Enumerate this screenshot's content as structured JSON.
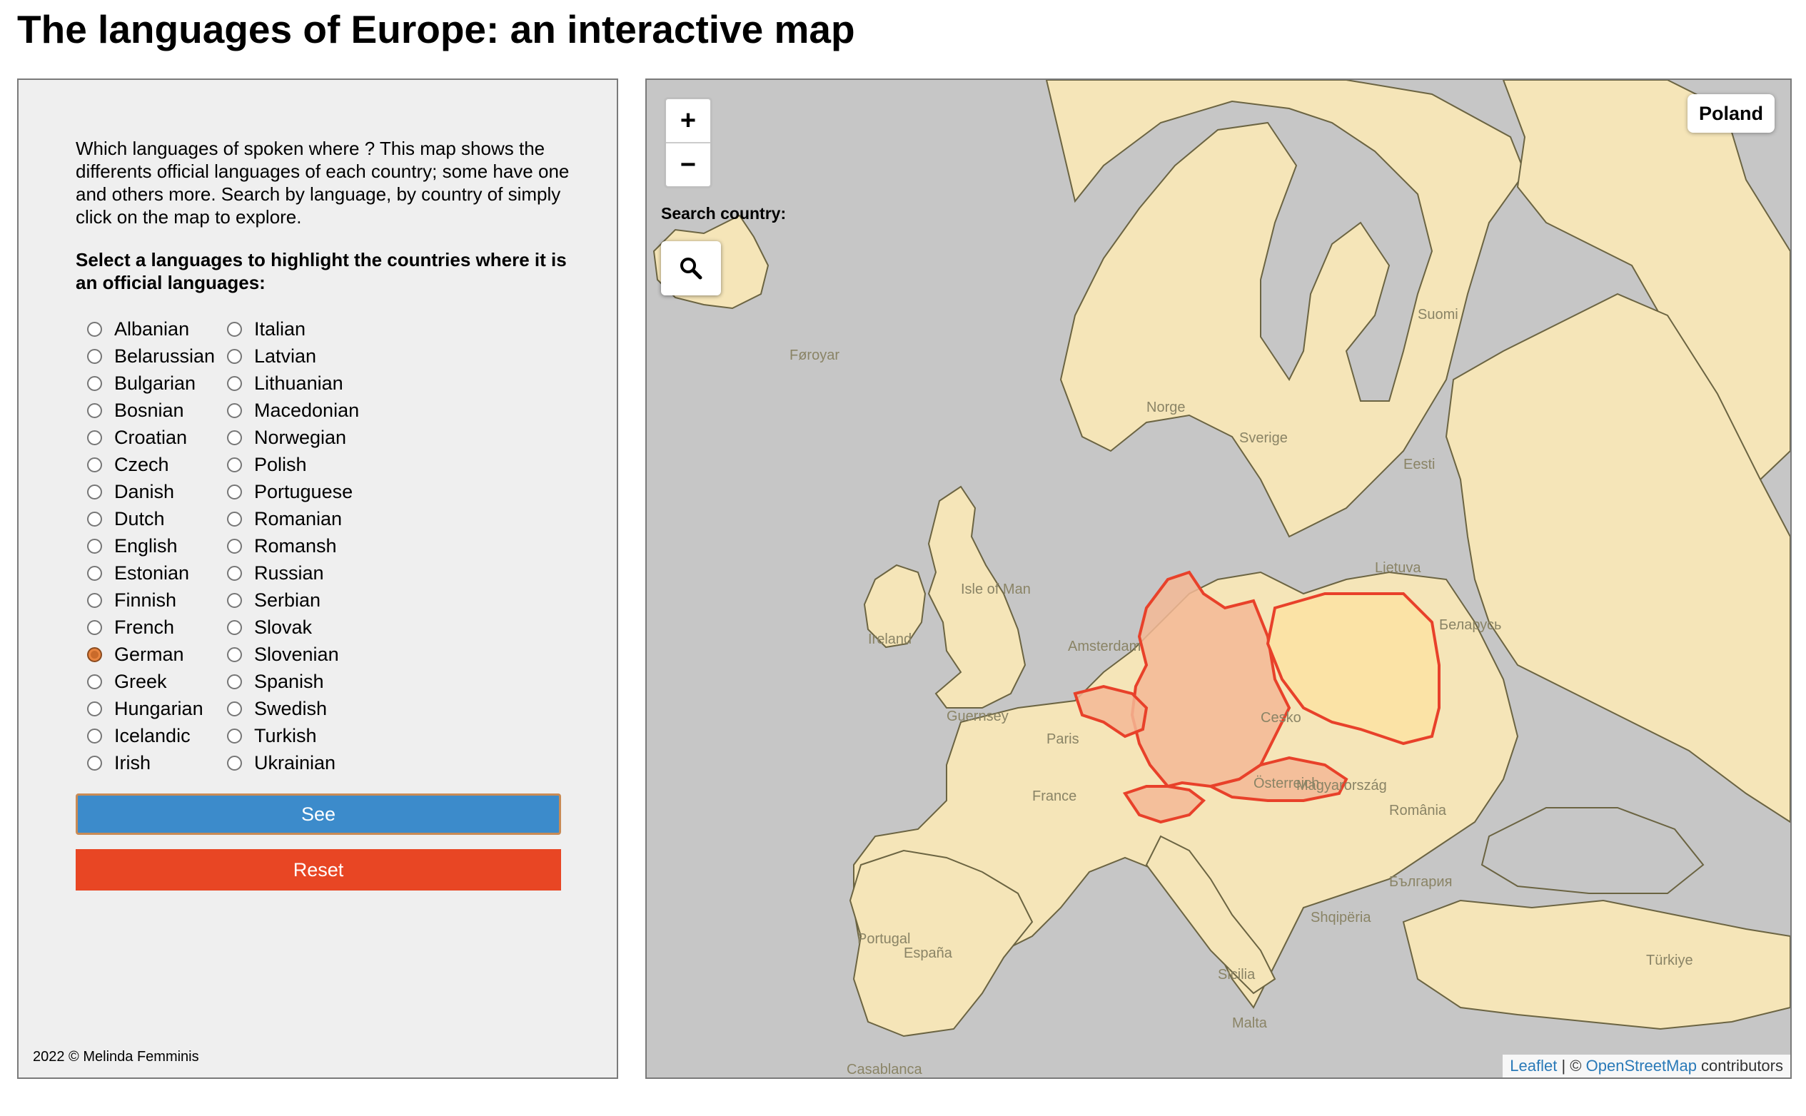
{
  "page_title": "The languages of Europe: an interactive map",
  "panel": {
    "intro": "Which languages of spoken where ? This map shows the differents official languages of each country; some have one and others more. Search by language, by country of simply click on the map to explore.",
    "instruction": "Select a languages to highlight the countries where it is an official languages:",
    "languages_col1": [
      "Albanian",
      "Belarussian",
      "Bulgarian",
      "Bosnian",
      "Croatian",
      "Czech",
      "Danish",
      "Dutch",
      "English",
      "Estonian",
      "Finnish",
      "French",
      "German",
      "Greek",
      "Hungarian",
      "Icelandic",
      "Irish"
    ],
    "languages_col2": [
      "Italian",
      "Latvian",
      "Lithuanian",
      "Macedonian",
      "Norwegian",
      "Polish",
      "Portuguese",
      "Romanian",
      "Romansh",
      "Russian",
      "Serbian",
      "Slovak",
      "Slovenian",
      "Spanish",
      "Swedish",
      "Turkish",
      "Ukrainian"
    ],
    "selected_language": "German",
    "see_button": "See",
    "reset_button": "Reset",
    "credit": "2022 © Melinda Femminis"
  },
  "map": {
    "zoom_in": "+",
    "zoom_out": "−",
    "search_label": "Search country:",
    "info_country": "Poland",
    "attribution_leaflet": "Leaflet",
    "attribution_sep": " | © ",
    "attribution_osm": "OpenStreetMap",
    "attribution_tail": " contributors",
    "labels": [
      "Føroyar",
      "Norge",
      "Sverige",
      "Suomi",
      "Eesti",
      "Lietuva",
      "Беларусь",
      "Cesko",
      "Magyarország",
      "România",
      "France",
      "España",
      "Portugal",
      "Türkiye",
      "Malta",
      "Österreich",
      "Guernsey",
      "Ireland",
      "Isle of Man",
      "Amsterdam",
      "Paris",
      "Sicilia",
      "Shqipëria",
      "България",
      "Casablanca"
    ],
    "colors": {
      "land": "#f5e5b8",
      "water": "#c6c6c6",
      "border": "#6b6442",
      "highlight_fill": "#f3b895",
      "highlight_stroke": "#e8412a",
      "hover_fill": "#fbe3a6"
    }
  }
}
